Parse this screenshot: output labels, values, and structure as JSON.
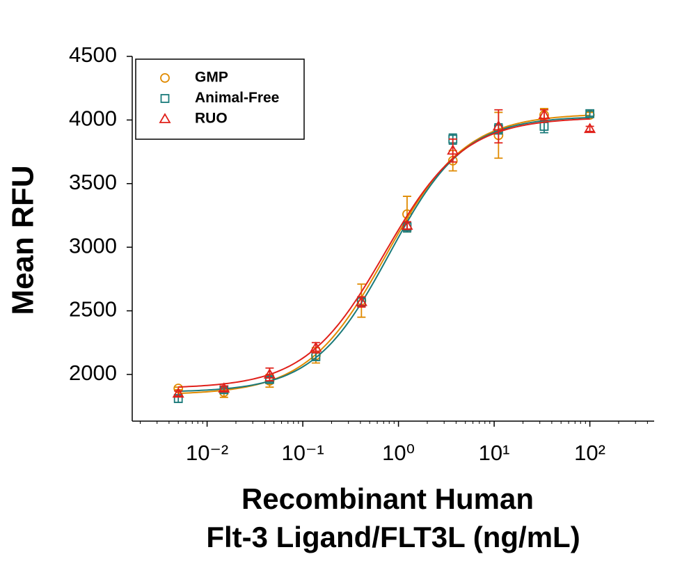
{
  "chart_data": {
    "type": "scatter",
    "xlabel": [
      "Recombinant Human",
      "Flt-3 Ligand/FLT3L (ng/mL)"
    ],
    "ylabel": "Mean RFU",
    "xscale": "log",
    "xlim": [
      0.00165,
      470
    ],
    "ylim": [
      1633,
      4500
    ],
    "xticks": [
      {
        "value": 0.01,
        "label": "10⁻²"
      },
      {
        "value": 0.1,
        "label": "10⁻¹"
      },
      {
        "value": 1,
        "label": "10⁰"
      },
      {
        "value": 10,
        "label": "10¹"
      },
      {
        "value": 100,
        "label": "10²"
      }
    ],
    "xminorticks": [
      0.002,
      0.003,
      0.004,
      0.005,
      0.006,
      0.007,
      0.008,
      0.009,
      0.02,
      0.03,
      0.04,
      0.05,
      0.06,
      0.07,
      0.08,
      0.09,
      0.2,
      0.3,
      0.4,
      0.5,
      0.6,
      0.7,
      0.8,
      0.9,
      2,
      3,
      4,
      5,
      6,
      7,
      8,
      9,
      20,
      30,
      40,
      50,
      60,
      70,
      80,
      90,
      200,
      300,
      400
    ],
    "yticks": [
      2000,
      2500,
      3000,
      3500,
      4000,
      4500
    ],
    "legend": "upper left",
    "x": [
      0.005,
      0.015,
      0.045,
      0.137,
      0.41,
      1.23,
      3.7,
      11.1,
      33.3,
      100
    ],
    "series": [
      {
        "name": "GMP",
        "color": "#e08a00",
        "marker": "circle",
        "values": [
          1890,
          1860,
          1950,
          2150,
          2580,
          3260,
          3680,
          3880,
          4040,
          4040
        ],
        "errors": [
          10,
          40,
          50,
          60,
          130,
          140,
          80,
          180,
          50,
          20
        ],
        "fit": {
          "bottom": 1840,
          "top": 4050,
          "ec50": 0.75,
          "hill": 1.05
        }
      },
      {
        "name": "Animal-Free",
        "color": "#1a7a7a",
        "marker": "square",
        "values": [
          1810,
          1880,
          1960,
          2140,
          2570,
          3160,
          3850,
          3930,
          3950,
          4050
        ],
        "errors": [
          30,
          20,
          20,
          30,
          40,
          40,
          40,
          40,
          50,
          20
        ],
        "fit": {
          "bottom": 1860,
          "top": 4030,
          "ec50": 0.8,
          "hill": 1.1
        }
      },
      {
        "name": "RUO",
        "color": "#e0201a",
        "marker": "triangle",
        "values": [
          1850,
          1890,
          2000,
          2210,
          2570,
          3170,
          3760,
          3950,
          4040,
          3930
        ],
        "errors": [
          20,
          20,
          50,
          40,
          40,
          30,
          90,
          130,
          40,
          20
        ],
        "fit": {
          "bottom": 1890,
          "top": 4020,
          "ec50": 0.72,
          "hill": 1.05
        }
      }
    ]
  }
}
